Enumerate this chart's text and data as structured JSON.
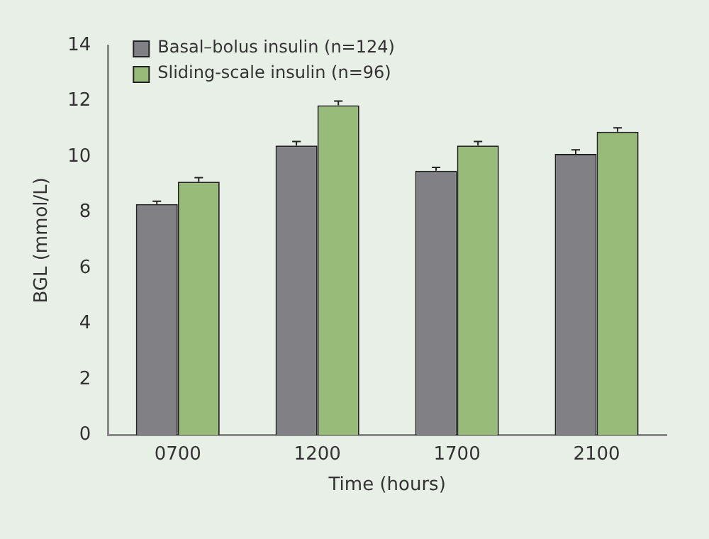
{
  "chart_data": {
    "type": "bar",
    "xlabel": "Time (hours)",
    "ylabel": "BGL (mmol/L)",
    "categories": [
      "0700",
      "1200",
      "1700",
      "2100"
    ],
    "series": [
      {
        "name": "Basal–bolus insulin (n=124)",
        "color": "#808085",
        "values": [
          8.3,
          10.4,
          9.5,
          10.1
        ],
        "errors": [
          0.1,
          0.15,
          0.12,
          0.15
        ]
      },
      {
        "name": "Sliding-scale insulin (n=96)",
        "color": "#98bb7a",
        "values": [
          9.1,
          11.85,
          10.4,
          10.9
        ],
        "errors": [
          0.15,
          0.15,
          0.15,
          0.14
        ]
      }
    ],
    "ylim": [
      0,
      14
    ],
    "yticks": [
      0,
      2,
      4,
      6,
      8,
      10,
      12,
      14
    ],
    "grid": false,
    "legend": "top left"
  }
}
